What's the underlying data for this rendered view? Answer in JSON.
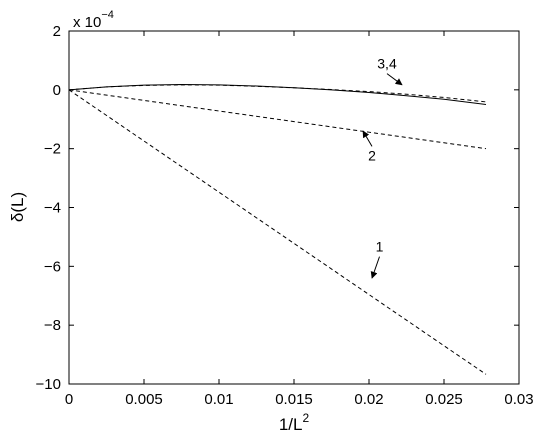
{
  "chart_data": {
    "type": "line",
    "xlabel": "1/L",
    "xlabel_superscript": "2",
    "ylabel": "δ(L)",
    "y_multiplier_text": "x 10",
    "y_multiplier_exponent": "−4",
    "xlim": [
      0,
      0.03
    ],
    "ylim": [
      -10,
      2
    ],
    "x_ticks": [
      0,
      0.005,
      0.01,
      0.015,
      0.02,
      0.025,
      0.03
    ],
    "x_tick_labels": [
      "0",
      "0.005",
      "0.01",
      "0.015",
      "0.02",
      "0.025",
      "0.03"
    ],
    "y_ticks": [
      -10,
      -8,
      -6,
      -4,
      -2,
      0,
      2
    ],
    "y_tick_labels": [
      "−10",
      "−8",
      "−6",
      "−4",
      "−2",
      "0",
      "2"
    ],
    "grid": false,
    "legend": "none",
    "series": [
      {
        "label": "1",
        "style": "dashed",
        "x": [
          0,
          0.005,
          0.01,
          0.015,
          0.02,
          0.025,
          0.0278
        ],
        "y": [
          0,
          -1.74,
          -3.48,
          -5.22,
          -6.96,
          -8.7,
          -9.67
        ]
      },
      {
        "label": "2",
        "style": "dashed",
        "x": [
          0,
          0.005,
          0.01,
          0.015,
          0.02,
          0.025,
          0.0278
        ],
        "y": [
          0,
          -0.36,
          -0.72,
          -1.08,
          -1.44,
          -1.8,
          -2.0
        ]
      },
      {
        "label": "3,4",
        "style": "solid",
        "x": [
          0,
          0.0025,
          0.005,
          0.0075,
          0.01,
          0.0125,
          0.015,
          0.0175,
          0.02,
          0.0225,
          0.025,
          0.0278
        ],
        "y": [
          0,
          0.1,
          0.16,
          0.18,
          0.17,
          0.13,
          0.07,
          0.0,
          -0.09,
          -0.2,
          -0.32,
          -0.5
        ]
      },
      {
        "label": "3,4",
        "style": "dashed",
        "x": [
          0,
          0.0025,
          0.005,
          0.0075,
          0.01,
          0.0125,
          0.015,
          0.0175,
          0.02,
          0.0225,
          0.025,
          0.0278
        ],
        "y": [
          0,
          0.1,
          0.15,
          0.17,
          0.16,
          0.12,
          0.07,
          0.01,
          -0.06,
          -0.15,
          -0.26,
          -0.41
        ]
      }
    ],
    "annotations": [
      {
        "text": "3,4",
        "x": 0.0212,
        "y": 0.72,
        "arrow_to": [
          0.0222,
          0.17
        ]
      },
      {
        "text": "2",
        "x": 0.0202,
        "y": -2.4,
        "arrow_to": [
          0.0196,
          -1.4
        ]
      },
      {
        "text": "1",
        "x": 0.0207,
        "y": -5.5,
        "arrow_to": [
          0.0202,
          -6.4
        ]
      }
    ]
  }
}
